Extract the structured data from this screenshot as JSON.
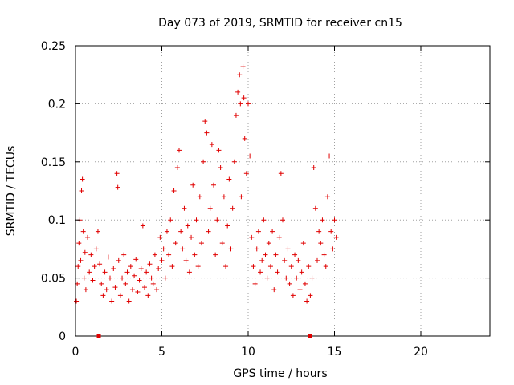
{
  "chart_data": {
    "type": "scatter",
    "title": "Day 073 of 2019, SRMTID for receiver cn15",
    "xlabel": "GPS time / hours",
    "ylabel": "SRMTID / TECUs",
    "xlim": [
      0,
      24
    ],
    "ylim": [
      0,
      0.25
    ],
    "xticks": [
      0,
      5,
      10,
      15,
      20
    ],
    "yticks": [
      0,
      0.05,
      0.1,
      0.15,
      0.2,
      0.25
    ],
    "xtick_labels": [
      "0",
      "5",
      "10",
      "15",
      "20"
    ],
    "ytick_labels": [
      "0",
      "0.05",
      "0.1",
      "0.15",
      "0.2",
      "0.25"
    ],
    "grid": true,
    "marker_color": "#e00000",
    "series": [
      {
        "name": "SRMTID",
        "marker": "plus",
        "points": [
          [
            0.05,
            0.03
          ],
          [
            0.1,
            0.045
          ],
          [
            0.15,
            0.06
          ],
          [
            0.2,
            0.08
          ],
          [
            0.25,
            0.1
          ],
          [
            0.3,
            0.065
          ],
          [
            0.35,
            0.125
          ],
          [
            0.4,
            0.135
          ],
          [
            0.45,
            0.09
          ],
          [
            0.5,
            0.05
          ],
          [
            0.55,
            0.072
          ],
          [
            0.6,
            0.04
          ],
          [
            0.7,
            0.085
          ],
          [
            0.8,
            0.055
          ],
          [
            0.9,
            0.07
          ],
          [
            1.0,
            0.048
          ],
          [
            1.1,
            0.06
          ],
          [
            1.2,
            0.075
          ],
          [
            1.3,
            0.09
          ],
          [
            1.4,
            0.062
          ],
          [
            1.5,
            0.045
          ],
          [
            1.6,
            0.035
          ],
          [
            1.7,
            0.055
          ],
          [
            1.8,
            0.04
          ],
          [
            1.9,
            0.068
          ],
          [
            2.0,
            0.05
          ],
          [
            2.1,
            0.03
          ],
          [
            2.2,
            0.058
          ],
          [
            2.3,
            0.042
          ],
          [
            2.4,
            0.14
          ],
          [
            2.45,
            0.128
          ],
          [
            2.5,
            0.065
          ],
          [
            2.6,
            0.035
          ],
          [
            2.7,
            0.05
          ],
          [
            2.8,
            0.07
          ],
          [
            2.9,
            0.045
          ],
          [
            3.0,
            0.055
          ],
          [
            3.1,
            0.03
          ],
          [
            3.2,
            0.06
          ],
          [
            3.3,
            0.04
          ],
          [
            3.4,
            0.052
          ],
          [
            3.5,
            0.066
          ],
          [
            3.6,
            0.038
          ],
          [
            3.7,
            0.048
          ],
          [
            3.8,
            0.058
          ],
          [
            3.9,
            0.095
          ],
          [
            4.0,
            0.042
          ],
          [
            4.1,
            0.055
          ],
          [
            4.2,
            0.035
          ],
          [
            4.3,
            0.062
          ],
          [
            4.4,
            0.05
          ],
          [
            4.5,
            0.045
          ],
          [
            4.6,
            0.07
          ],
          [
            4.7,
            0.04
          ],
          [
            4.8,
            0.058
          ],
          [
            4.9,
            0.085
          ],
          [
            5.0,
            0.065
          ],
          [
            5.1,
            0.075
          ],
          [
            5.2,
            0.05
          ],
          [
            5.3,
            0.09
          ],
          [
            5.4,
            0.07
          ],
          [
            5.5,
            0.1
          ],
          [
            5.6,
            0.06
          ],
          [
            5.7,
            0.125
          ],
          [
            5.8,
            0.08
          ],
          [
            5.9,
            0.145
          ],
          [
            6.0,
            0.16
          ],
          [
            6.1,
            0.09
          ],
          [
            6.2,
            0.075
          ],
          [
            6.3,
            0.11
          ],
          [
            6.4,
            0.065
          ],
          [
            6.5,
            0.095
          ],
          [
            6.6,
            0.055
          ],
          [
            6.7,
            0.085
          ],
          [
            6.8,
            0.13
          ],
          [
            6.9,
            0.07
          ],
          [
            7.0,
            0.1
          ],
          [
            7.1,
            0.06
          ],
          [
            7.2,
            0.12
          ],
          [
            7.3,
            0.08
          ],
          [
            7.4,
            0.15
          ],
          [
            7.5,
            0.185
          ],
          [
            7.6,
            0.175
          ],
          [
            7.7,
            0.09
          ],
          [
            7.8,
            0.11
          ],
          [
            7.9,
            0.165
          ],
          [
            8.0,
            0.13
          ],
          [
            8.1,
            0.07
          ],
          [
            8.2,
            0.1
          ],
          [
            8.3,
            0.16
          ],
          [
            8.4,
            0.145
          ],
          [
            8.5,
            0.08
          ],
          [
            8.6,
            0.12
          ],
          [
            8.7,
            0.06
          ],
          [
            8.8,
            0.095
          ],
          [
            8.9,
            0.135
          ],
          [
            9.0,
            0.075
          ],
          [
            9.1,
            0.11
          ],
          [
            9.2,
            0.15
          ],
          [
            9.3,
            0.19
          ],
          [
            9.4,
            0.21
          ],
          [
            9.5,
            0.225
          ],
          [
            9.55,
            0.2
          ],
          [
            9.6,
            0.12
          ],
          [
            9.7,
            0.232
          ],
          [
            9.75,
            0.205
          ],
          [
            9.8,
            0.17
          ],
          [
            9.9,
            0.14
          ],
          [
            10.0,
            0.2
          ],
          [
            10.1,
            0.155
          ],
          [
            10.2,
            0.085
          ],
          [
            10.3,
            0.06
          ],
          [
            10.4,
            0.045
          ],
          [
            10.5,
            0.075
          ],
          [
            10.6,
            0.09
          ],
          [
            10.7,
            0.055
          ],
          [
            10.8,
            0.065
          ],
          [
            10.9,
            0.1
          ],
          [
            11.0,
            0.07
          ],
          [
            11.1,
            0.05
          ],
          [
            11.2,
            0.08
          ],
          [
            11.3,
            0.06
          ],
          [
            11.4,
            0.09
          ],
          [
            11.5,
            0.04
          ],
          [
            11.6,
            0.07
          ],
          [
            11.7,
            0.055
          ],
          [
            11.8,
            0.085
          ],
          [
            11.9,
            0.14
          ],
          [
            12.0,
            0.1
          ],
          [
            12.1,
            0.065
          ],
          [
            12.2,
            0.05
          ],
          [
            12.3,
            0.075
          ],
          [
            12.4,
            0.045
          ],
          [
            12.5,
            0.06
          ],
          [
            12.6,
            0.035
          ],
          [
            12.7,
            0.07
          ],
          [
            12.8,
            0.05
          ],
          [
            12.9,
            0.065
          ],
          [
            13.0,
            0.04
          ],
          [
            13.1,
            0.055
          ],
          [
            13.2,
            0.08
          ],
          [
            13.3,
            0.045
          ],
          [
            13.4,
            0.03
          ],
          [
            13.5,
            0.06
          ],
          [
            13.6,
            0.035
          ],
          [
            13.7,
            0.05
          ],
          [
            13.8,
            0.145
          ],
          [
            13.9,
            0.11
          ],
          [
            14.0,
            0.065
          ],
          [
            14.1,
            0.09
          ],
          [
            14.2,
            0.08
          ],
          [
            14.3,
            0.1
          ],
          [
            14.4,
            0.07
          ],
          [
            14.5,
            0.06
          ],
          [
            14.6,
            0.12
          ],
          [
            14.7,
            0.155
          ],
          [
            14.8,
            0.09
          ],
          [
            14.9,
            0.075
          ],
          [
            15.0,
            0.1
          ],
          [
            15.1,
            0.085
          ]
        ]
      }
    ],
    "bottom_markers": [
      1.35,
      13.6
    ]
  }
}
